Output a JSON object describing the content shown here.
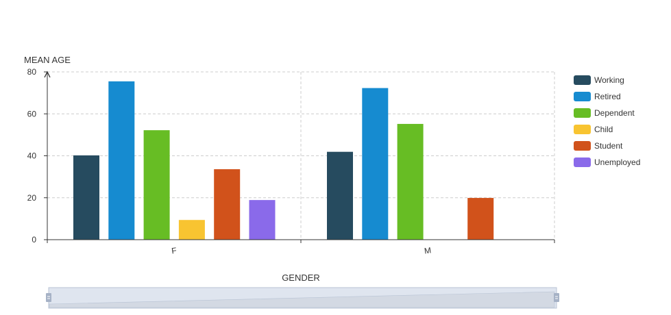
{
  "chart_data": {
    "type": "bar",
    "categories": [
      "F",
      "M"
    ],
    "series": [
      {
        "name": "Working",
        "color": "#264b5f",
        "values": [
          40.2,
          41.9
        ]
      },
      {
        "name": "Retired",
        "color": "#168bd0",
        "values": [
          75.5,
          72.3
        ]
      },
      {
        "name": "Dependent",
        "color": "#67bd24",
        "values": [
          52.2,
          55.2
        ]
      },
      {
        "name": "Child",
        "color": "#f8c431",
        "values": [
          9.4,
          null
        ]
      },
      {
        "name": "Student",
        "color": "#d1521b",
        "values": [
          33.6,
          19.9
        ]
      },
      {
        "name": "Unemployed",
        "color": "#8a6aea",
        "values": [
          18.9,
          null
        ]
      }
    ],
    "xlabel": "GENDER",
    "ylabel": "MEAN AGE",
    "ylim": [
      0,
      80
    ],
    "yticks": [
      0,
      20,
      40,
      60,
      80
    ],
    "grid": true,
    "legend_position": "right"
  },
  "zoom_slider": {
    "range": [
      0,
      1
    ],
    "handle_color": "#a6b2c6",
    "fill_color": "#d3d9e3"
  }
}
